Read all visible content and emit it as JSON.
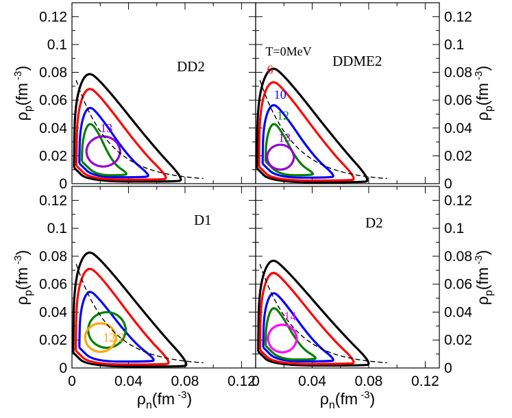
{
  "colors": {
    "T0": "#000000",
    "T6": "#ff0000",
    "T10": "#0000ff",
    "T12": "#008000",
    "T13": "#9400d3",
    "T12_2": "#ffa500",
    "T14": "#ff00ff",
    "axis": "#000000",
    "dashed": "#000000"
  },
  "axes": {
    "xlabel": {
      "rho": "ρ",
      "sub": "n",
      "unit_open": "(fm",
      "sup": "-3",
      "close": ")"
    },
    "ylabel": {
      "rho": "ρ",
      "sub": "p",
      "unit_open": "(fm",
      "sup": "-3",
      "close": ")"
    },
    "x_ticks": [
      "0",
      "0.04",
      "0.08",
      "0.12"
    ],
    "y_ticks": [
      "0",
      "0.02",
      "0.04",
      "0.06",
      "0.08",
      "0.1",
      "0.12"
    ]
  },
  "chart_data": [
    {
      "type": "line",
      "panel": "top-left",
      "label": "DD2",
      "xlim": [
        0,
        0.13
      ],
      "ylim": [
        0,
        0.13
      ],
      "x_tick_values": [
        0,
        0.04,
        0.08,
        0.12
      ],
      "y_tick_values": [
        0,
        0.02,
        0.04,
        0.06,
        0.08,
        0.1,
        0.12
      ],
      "series": [
        {
          "T": "0",
          "color": "black",
          "ymax": 0.081,
          "xmax": 0.08,
          "shape": "triangle"
        },
        {
          "T": "6",
          "color": "red",
          "ymax": 0.07,
          "xmax": 0.069,
          "shape": "triangle"
        },
        {
          "T": "10",
          "color": "blue",
          "ymax": 0.056,
          "xmax": 0.056,
          "shape": "triangle"
        },
        {
          "T": "12",
          "color": "green",
          "ymax": 0.044,
          "xmax": 0.04,
          "shape": "triangle"
        },
        {
          "T": "13",
          "color": "purple",
          "ymax": 0.034,
          "xmax": 0.034,
          "shape": "loop"
        }
      ],
      "annotations": [
        {
          "text": "13",
          "x": 0.02,
          "y": 0.037,
          "color": "purple"
        }
      ]
    },
    {
      "type": "line",
      "panel": "top-right",
      "label": "DDME2",
      "xlim": [
        0,
        0.13
      ],
      "ylim": [
        0,
        0.13
      ],
      "x_tick_values": [
        0,
        0.04,
        0.08,
        0.12
      ],
      "y_tick_values": [
        0,
        0.02,
        0.04,
        0.06,
        0.08,
        0.1,
        0.12
      ],
      "series": [
        {
          "T": "0",
          "color": "black",
          "ymax": 0.085,
          "xmax": 0.082,
          "shape": "triangle"
        },
        {
          "T": "6",
          "color": "red",
          "ymax": 0.075,
          "xmax": 0.072,
          "shape": "triangle"
        },
        {
          "T": "10",
          "color": "blue",
          "ymax": 0.058,
          "xmax": 0.057,
          "shape": "triangle"
        },
        {
          "T": "12",
          "color": "green",
          "ymax": 0.044,
          "xmax": 0.042,
          "shape": "triangle"
        },
        {
          "T": "13",
          "color": "purple",
          "ymax": 0.028,
          "xmax": 0.027,
          "shape": "loop"
        }
      ],
      "annotations": [
        {
          "text": "T=0MeV",
          "x": 0.007,
          "y": 0.092,
          "color": "black"
        },
        {
          "text": "6",
          "x": 0.008,
          "y": 0.079,
          "color": "red"
        },
        {
          "text": "10",
          "x": 0.013,
          "y": 0.061,
          "color": "blue"
        },
        {
          "text": "12",
          "x": 0.015,
          "y": 0.046,
          "color": "green"
        },
        {
          "text": "13",
          "x": 0.016,
          "y": 0.03,
          "color": "purple"
        }
      ]
    },
    {
      "type": "line",
      "panel": "bottom-left",
      "label": "D1",
      "xlim": [
        0,
        0.13
      ],
      "ylim": [
        0,
        0.13
      ],
      "x_tick_values": [
        0,
        0.04,
        0.08,
        0.12
      ],
      "y_tick_values": [
        0,
        0.02,
        0.04,
        0.06,
        0.08,
        0.1,
        0.12
      ],
      "series": [
        {
          "T": "0",
          "color": "black",
          "ymax": 0.085,
          "xmax": 0.084,
          "shape": "triangle"
        },
        {
          "T": "6",
          "color": "red",
          "ymax": 0.073,
          "xmax": 0.071,
          "shape": "triangle"
        },
        {
          "T": "10",
          "color": "blue",
          "ymax": 0.056,
          "xmax": 0.06,
          "shape": "triangle"
        },
        {
          "T": "12",
          "color": "green",
          "ymax": 0.04,
          "xmax": 0.038,
          "shape": "loop"
        },
        {
          "T": "12.2",
          "color": "orange",
          "ymax": 0.032,
          "xmax": 0.031,
          "shape": "loop"
        }
      ],
      "annotations": [
        {
          "text": "12.2",
          "x": 0.022,
          "y": 0.019,
          "color": "orange"
        }
      ]
    },
    {
      "type": "line",
      "panel": "bottom-right",
      "label": "D2",
      "xlim": [
        0,
        0.13
      ],
      "ylim": [
        0,
        0.13
      ],
      "x_tick_values": [
        0,
        0.04,
        0.08,
        0.12
      ],
      "y_tick_values": [
        0,
        0.02,
        0.04,
        0.06,
        0.08,
        0.1,
        0.12
      ],
      "series": [
        {
          "T": "0",
          "color": "black",
          "ymax": 0.079,
          "xmax": 0.083,
          "shape": "triangle"
        },
        {
          "T": "6",
          "color": "red",
          "ymax": 0.07,
          "xmax": 0.072,
          "shape": "triangle"
        },
        {
          "T": "10",
          "color": "blue",
          "ymax": 0.055,
          "xmax": 0.057,
          "shape": "triangle"
        },
        {
          "T": "12",
          "color": "green",
          "ymax": 0.044,
          "xmax": 0.044,
          "shape": "triangle"
        },
        {
          "T": "14",
          "color": "magenta",
          "ymax": 0.031,
          "xmax": 0.029,
          "shape": "loop"
        }
      ],
      "annotations": [
        {
          "text": "14",
          "x": 0.02,
          "y": 0.034,
          "color": "magenta"
        }
      ]
    }
  ]
}
